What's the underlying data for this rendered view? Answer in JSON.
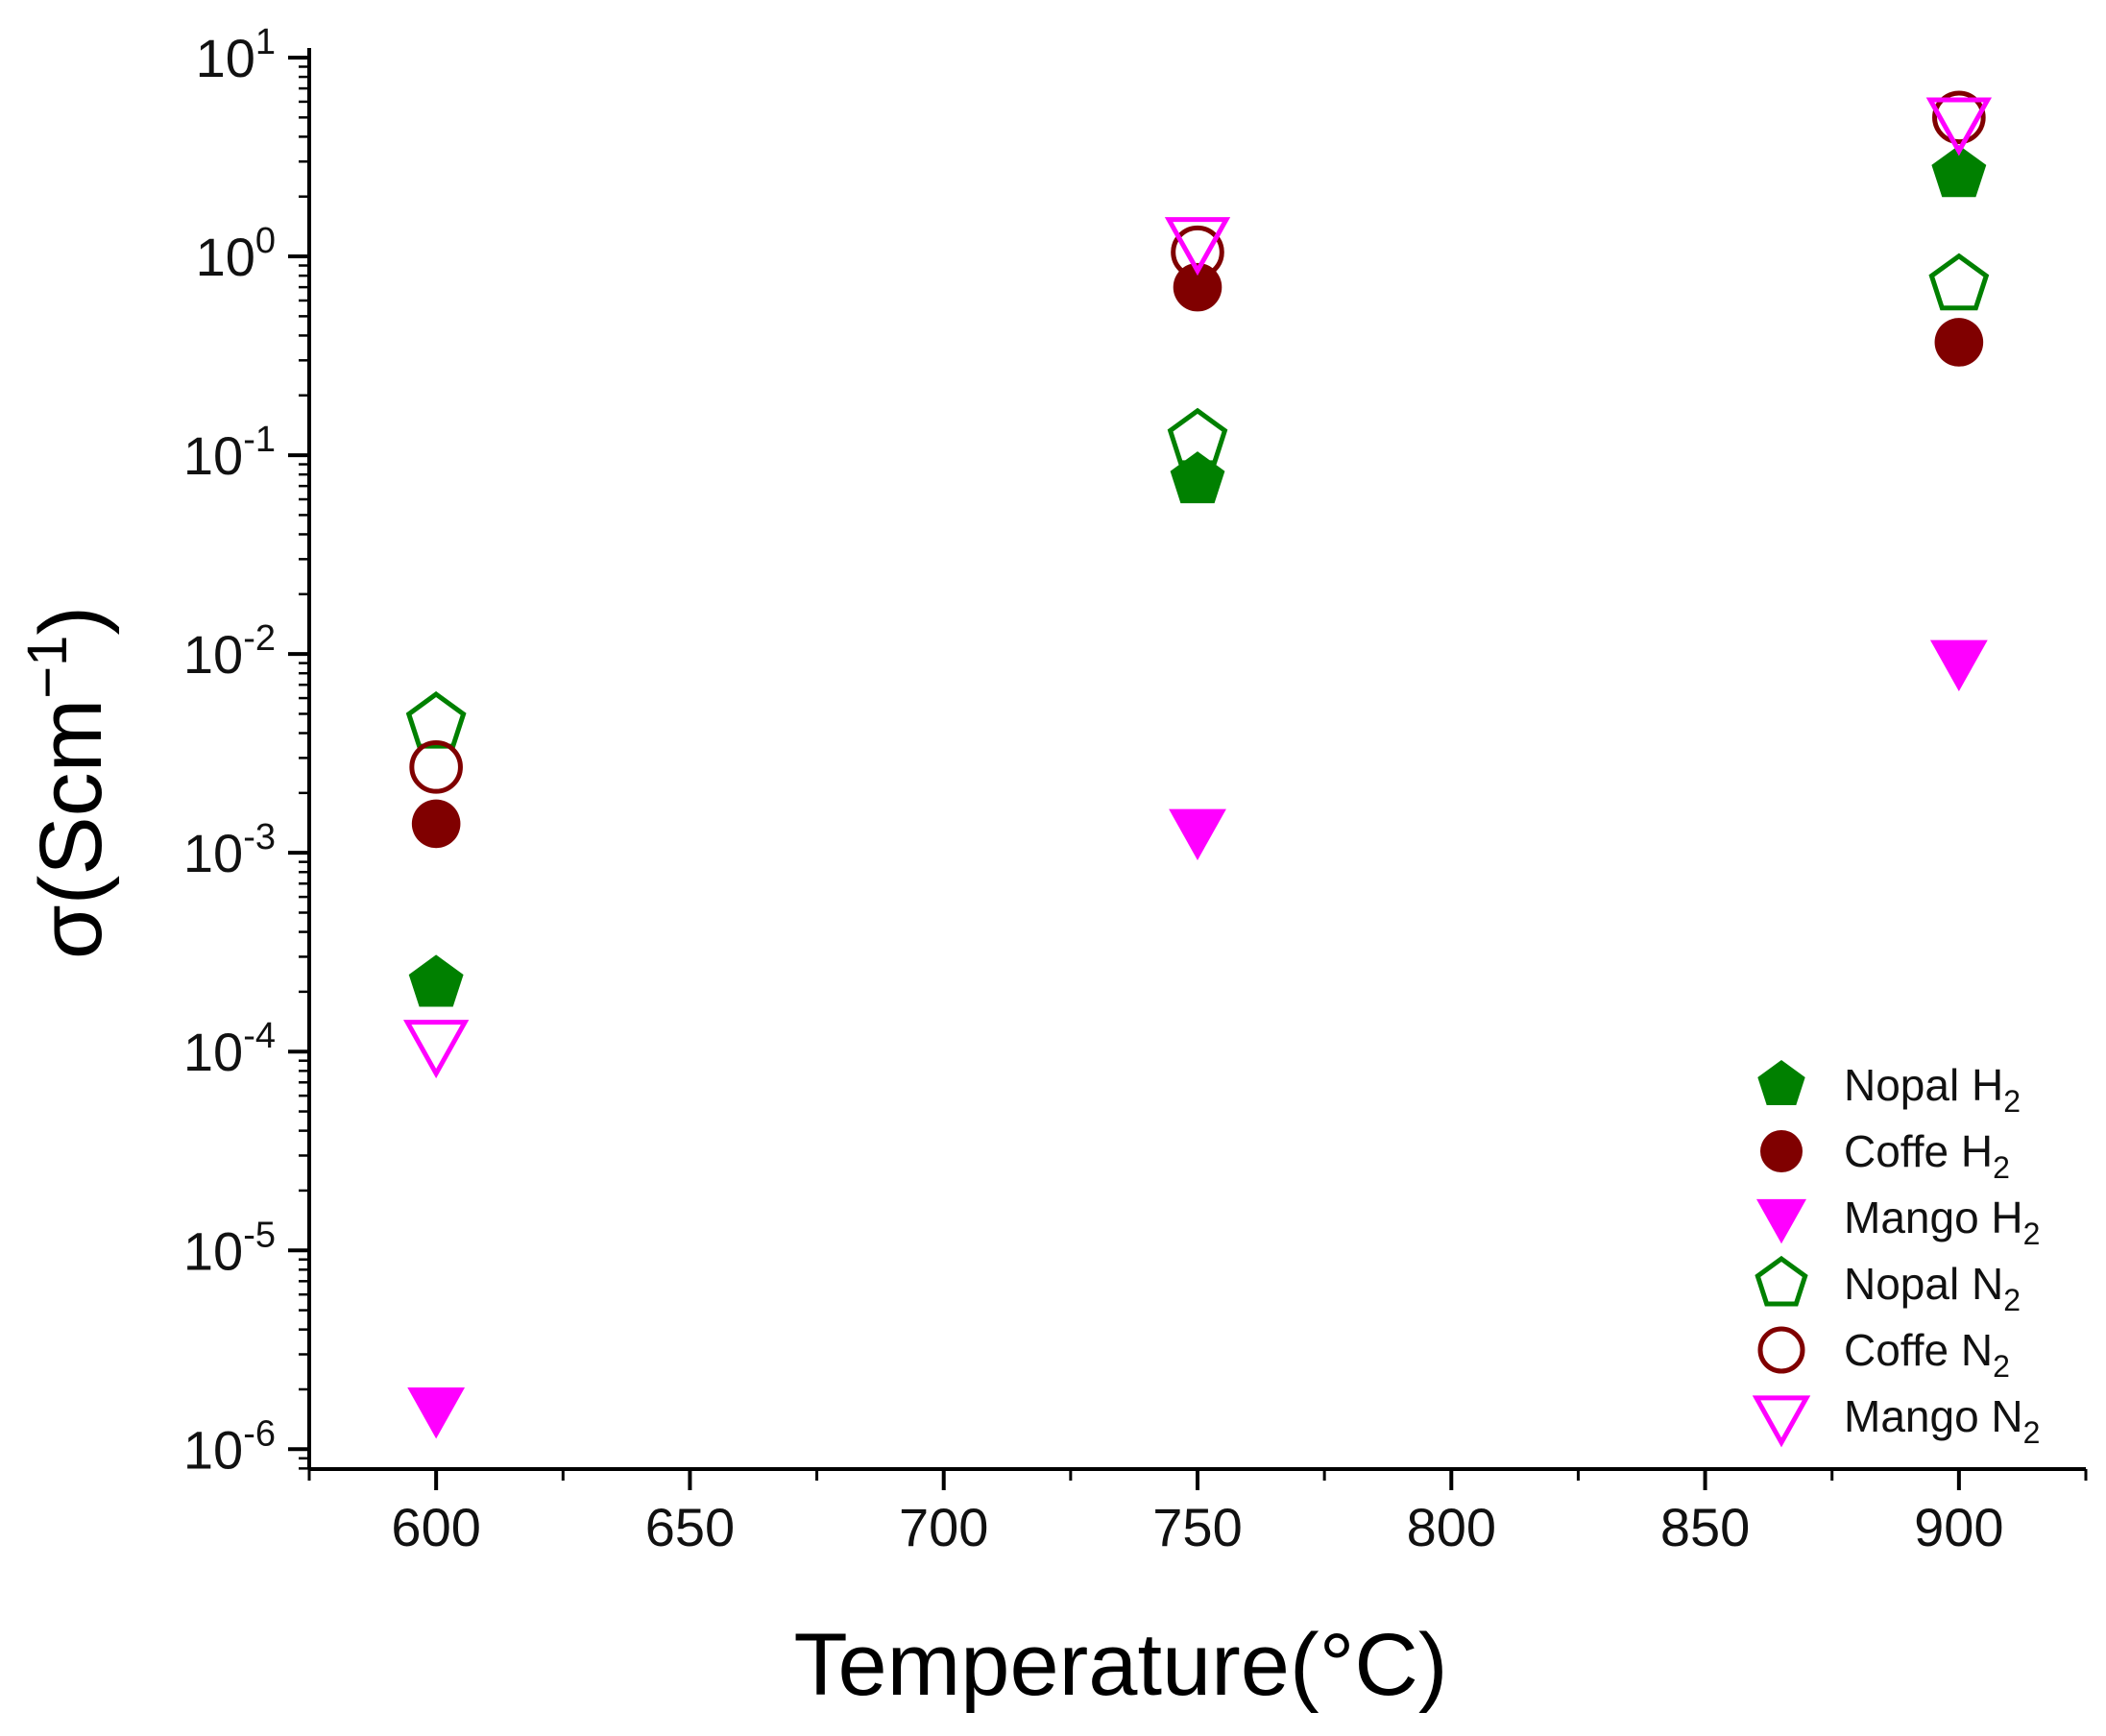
{
  "chart_data": {
    "type": "scatter",
    "title": "",
    "xlabel": "Temperature(°C)",
    "ylabel": {
      "prefix": "σ(Scm",
      "sup": "−1",
      "suffix": ")"
    },
    "xlim": [
      575,
      925
    ],
    "ylim_exponent": [
      -6.1,
      1
    ],
    "yscale": "log",
    "x_ticks": [
      600,
      650,
      700,
      750,
      800,
      850,
      900
    ],
    "x_tick_labels": [
      "600",
      "650",
      "700",
      "750",
      "800",
      "850",
      "900"
    ],
    "y_ticks": [
      {
        "exp": 1,
        "base": "10",
        "sup": "1"
      },
      {
        "exp": 0,
        "base": "10",
        "sup": "0"
      },
      {
        "exp": -1,
        "base": "10",
        "sup": "-1"
      },
      {
        "exp": -2,
        "base": "10",
        "sup": "-2"
      },
      {
        "exp": -3,
        "base": "10",
        "sup": "-3"
      },
      {
        "exp": -4,
        "base": "10",
        "sup": "-4"
      },
      {
        "exp": -5,
        "base": "10",
        "sup": "-5"
      },
      {
        "exp": -6,
        "base": "10",
        "sup": "-6"
      }
    ],
    "legend_position": "bottom-right",
    "series": [
      {
        "name": "Nopal H",
        "sub": "2",
        "marker": "pentagon",
        "filled": true,
        "color": "#008000",
        "points": [
          {
            "x": 600,
            "y": 0.00022
          },
          {
            "x": 750,
            "y": 0.075
          },
          {
            "x": 900,
            "y": 2.6
          }
        ]
      },
      {
        "name": "Coffe H",
        "sub": "2",
        "marker": "circle",
        "filled": true,
        "color": "#800000",
        "points": [
          {
            "x": 600,
            "y": 0.0014
          },
          {
            "x": 750,
            "y": 0.7
          },
          {
            "x": 900,
            "y": 0.37
          }
        ]
      },
      {
        "name": "Mango H",
        "sub": "2",
        "marker": "triangle-down",
        "filled": true,
        "color": "#ff00ff",
        "points": [
          {
            "x": 600,
            "y": 1.6e-06
          },
          {
            "x": 750,
            "y": 0.0013
          },
          {
            "x": 900,
            "y": 0.0092
          }
        ]
      },
      {
        "name": "Nopal N",
        "sub": "2",
        "marker": "pentagon",
        "filled": false,
        "color": "#008000",
        "points": [
          {
            "x": 600,
            "y": 0.0045
          },
          {
            "x": 750,
            "y": 0.12
          },
          {
            "x": 900,
            "y": 0.72
          }
        ]
      },
      {
        "name": "Coffe N",
        "sub": "2",
        "marker": "circle",
        "filled": false,
        "color": "#800000",
        "points": [
          {
            "x": 600,
            "y": 0.0027
          },
          {
            "x": 750,
            "y": 1.05
          },
          {
            "x": 900,
            "y": 5.0
          }
        ]
      },
      {
        "name": "Mango N",
        "sub": "2",
        "marker": "triangle-down",
        "filled": false,
        "color": "#ff00ff",
        "points": [
          {
            "x": 600,
            "y": 0.00011
          },
          {
            "x": 750,
            "y": 1.2
          },
          {
            "x": 900,
            "y": 4.8
          }
        ]
      }
    ]
  }
}
